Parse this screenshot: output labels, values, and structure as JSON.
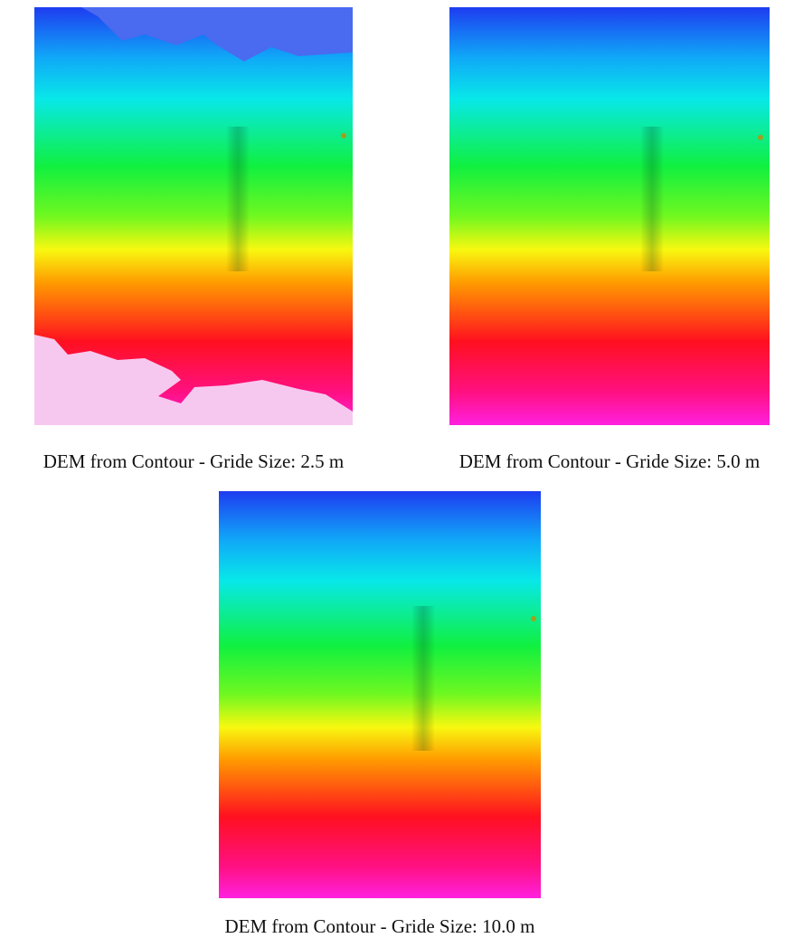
{
  "panels": [
    {
      "caption": "DEM from Contour - Gride Size: 2.5 m"
    },
    {
      "caption": "DEM from Contour - Gride Size: 5.0 m"
    },
    {
      "caption": "DEM from Contour - Gride Size: 10.0 m"
    }
  ]
}
